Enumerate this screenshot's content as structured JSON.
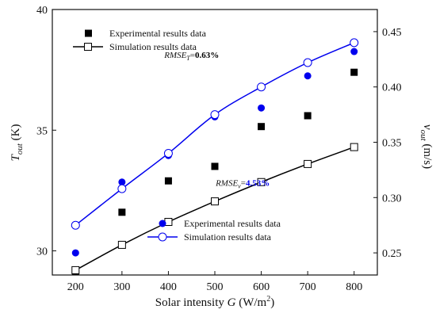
{
  "chart_data": {
    "type": "scatter",
    "x": [
      200,
      300,
      400,
      500,
      600,
      700,
      800
    ],
    "xlim": [
      150,
      850
    ],
    "xticks": [
      "200",
      "300",
      "400",
      "500",
      "600",
      "700",
      "800"
    ],
    "xlabel": {
      "text": "Solar intensity ",
      "var": "G",
      "unit_pre": " (W/m",
      "unit_sup": "2",
      "unit_post": ")"
    },
    "left_axis": {
      "lim": [
        29,
        40
      ],
      "ticks": [
        "30",
        "35",
        "40"
      ],
      "label_main": "T",
      "label_sub": "out",
      "label_unit": " (K)"
    },
    "right_axis": {
      "lim": [
        0.23,
        0.47
      ],
      "ticks": [
        "0.25",
        "0.30",
        "0.35",
        "0.40",
        "0.45"
      ],
      "label_main": "v",
      "label_sub": "out",
      "label_unit": " (m/s)"
    },
    "series": [
      {
        "name": "Experimental results data",
        "axis": "left",
        "marker": "filled-square",
        "color": "#000000",
        "values": [
          29.15,
          31.6,
          32.9,
          33.5,
          35.15,
          35.6,
          37.4
        ]
      },
      {
        "name": "Simulation results data",
        "axis": "left",
        "marker": "open-square-line",
        "color": "#000000",
        "values": [
          29.2,
          30.25,
          31.2,
          32.05,
          32.85,
          33.6,
          34.3
        ]
      },
      {
        "name": "Experimental results data",
        "axis": "right",
        "marker": "filled-circle",
        "color": "#0000ee",
        "values": [
          0.25,
          0.314,
          0.338,
          0.373,
          0.381,
          0.41,
          0.432
        ]
      },
      {
        "name": "Simulation results data",
        "axis": "right",
        "marker": "open-circle-line",
        "color": "#0000ee",
        "values": [
          0.275,
          0.308,
          0.34,
          0.375,
          0.4,
          0.422,
          0.44
        ]
      }
    ],
    "annotations": [
      {
        "prefix": "RMSE",
        "sub": "T",
        "eq": "=",
        "value": "0.63%",
        "value_color": "#000000",
        "x": 450,
        "y": 38.0,
        "axis": "left"
      },
      {
        "prefix": "RMSE",
        "sub": "v",
        "eq": "=",
        "value": "4.53%",
        "value_color": "#0000ee",
        "x": 560,
        "y": 32.7,
        "axis": "left"
      }
    ],
    "legend_top": [
      "Experimental results data",
      "Simulation results data"
    ],
    "legend_bottom": [
      "Experimental results data",
      "Simulation results data"
    ],
    "grid": false
  }
}
